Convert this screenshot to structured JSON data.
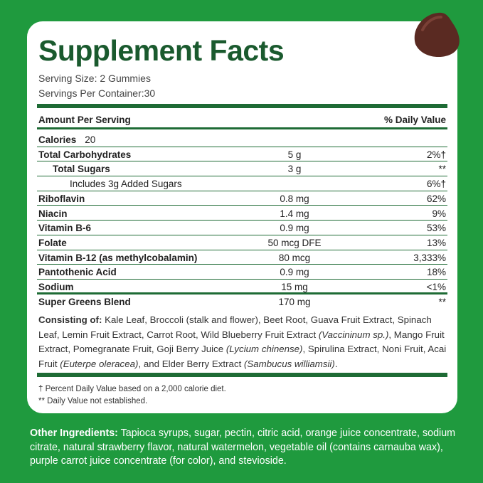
{
  "header": {
    "title": "Supplement Facts",
    "serving_size": "Serving Size: 2 Gummies",
    "servings_per_container": "Servings Per Container:",
    "servings_count": "30"
  },
  "table": {
    "columns": [
      "Amount Per Serving",
      "% Daily Value"
    ],
    "calories": {
      "label": "Calories",
      "value": "20"
    },
    "rows": [
      {
        "name": "Total Carbohydrates",
        "amount": "5 g",
        "dv": "2%†",
        "indent": 0
      },
      {
        "name": "Total Sugars",
        "amount": "3 g",
        "dv": "**",
        "indent": 1
      },
      {
        "name": "Includes 3g Added Sugars",
        "dv": "6%†",
        "indent": 2
      },
      {
        "name": "Riboflavin",
        "amount": "0.8 mg",
        "dv": "62%",
        "indent": 0
      },
      {
        "name": "Niacin",
        "amount": "1.4 mg",
        "dv": "9%",
        "indent": 0
      },
      {
        "name": "Vitamin B-6",
        "amount": "0.9 mg",
        "dv": "53%",
        "indent": 0
      },
      {
        "name": "Folate",
        "amount": "50 mcg DFE",
        "dv": "13%",
        "indent": 0
      },
      {
        "name": "Vitamin B-12 (as methylcobalamin)",
        "amount": "80 mcg",
        "dv": "3,333%",
        "indent": 0
      },
      {
        "name": "Pantothenic Acid",
        "amount": "0.9 mg",
        "dv": "18%",
        "indent": 0
      },
      {
        "name": "Sodium",
        "amount": "15 mg",
        "dv": "<1%",
        "indent": 0
      },
      {
        "name": "Super Greens Blend",
        "amount": "170 mg",
        "dv": "**",
        "indent": 0
      }
    ]
  },
  "consisting": [
    {
      "text": "Consisting of:",
      "bold": true
    },
    {
      "text": " Kale Leaf, Broccoli (stalk and flower), Beet Root, Guava Fruit Extract, Spinach Leaf, Lemin Fruit Extract, Carrot Root, Wild Blueberry Fruit Extract "
    },
    {
      "text": "(Vaccininum sp.)",
      "italic": true
    },
    {
      "text": ", Mango Fruit Extract, Pomegranate Fruit, Goji Berry Juice "
    },
    {
      "text": "(Lycium chinense)",
      "italic": true
    },
    {
      "text": ", Spirulina Extract, Noni Fruit, Acai Fruit "
    },
    {
      "text": "(Euterpe oleracea)",
      "italic": true
    },
    {
      "text": ", and Elder Berry Extract "
    },
    {
      "text": "(Sambucus williamsii)",
      "italic": true
    },
    {
      "text": "."
    }
  ],
  "footnotes": [
    "† Percent Daily Value based on a 2,000 calorie diet.",
    "** Daily Value not established."
  ],
  "other_ingredients": {
    "label": "Other Ingredients:",
    "text": " Tapioca syrups, sugar, pectin, citric acid, orange juice concentrate, sodium citrate, natural strawberry flavor, natural watermelon, vegetable oil (contains carnauba wax), purple carrot juice concentrate (for color), and stevioside."
  }
}
